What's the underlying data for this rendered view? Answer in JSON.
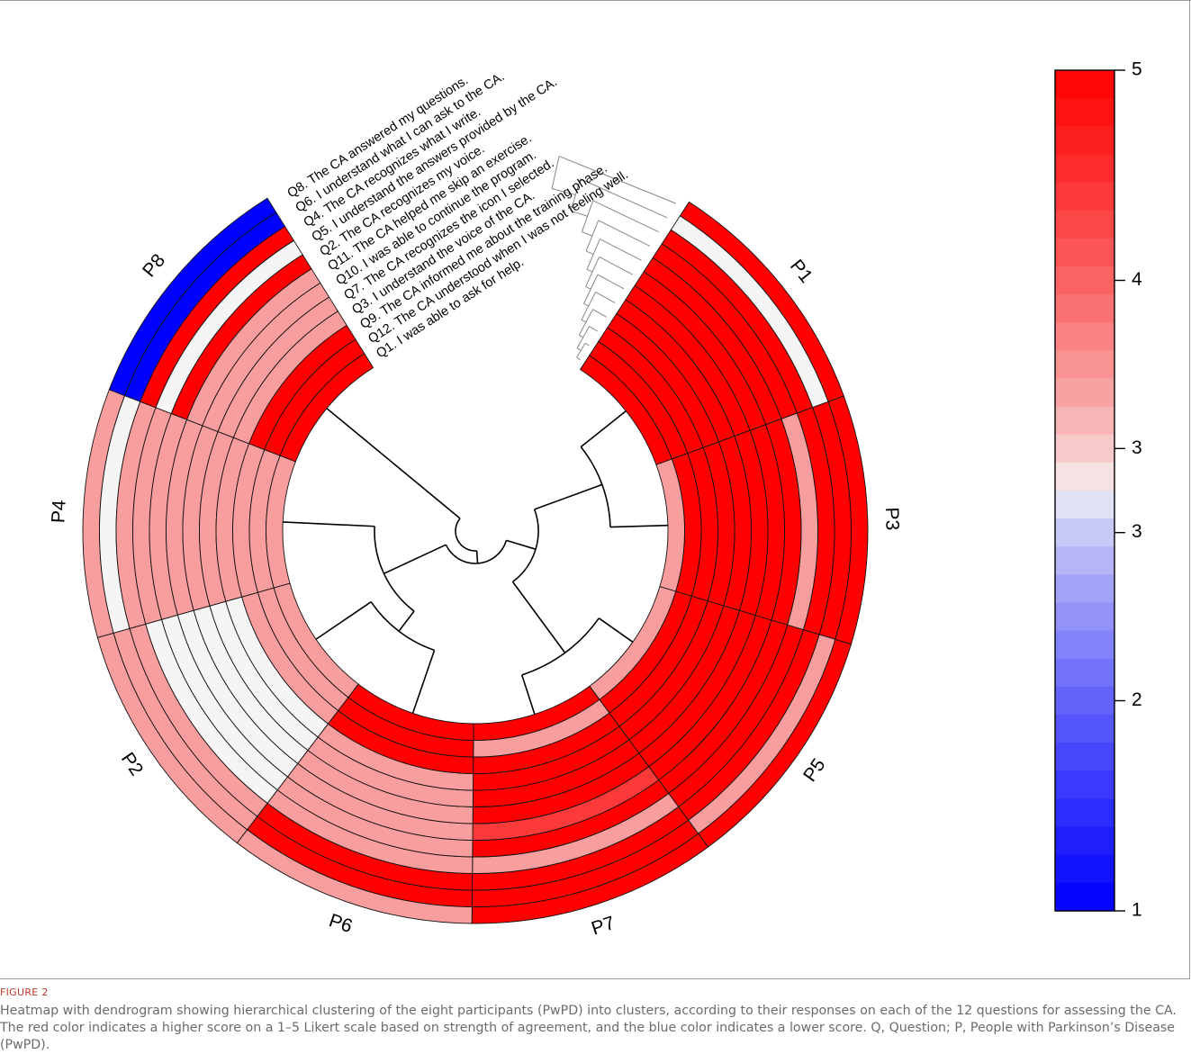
{
  "chart_data": {
    "type": "heatmap",
    "layout": "circular",
    "rows": [
      "Q8. The CA answered my questions.",
      "Q6. I understand what I can ask to the CA.",
      "Q4. The CA recognizes what I write.",
      "Q5. I understand the answers provided by the CA.",
      "Q2. The CA recognizes my voice.",
      "Q11. The CA helped me skip an exercise.",
      "Q10. I was able to continue the program.",
      "Q7. The CA recognizes the icon I selected.",
      "Q3. I understand the voice of the CA.",
      "Q9. The CA informed me about the training phase.",
      "Q12. The CA understood when I was not feeling well.",
      "Q1. I was able to ask for help."
    ],
    "participants": [
      "P1",
      "P3",
      "P5",
      "P7",
      "P6",
      "P2",
      "P4",
      "P8"
    ],
    "values": {
      "P1": [
        5,
        3,
        5,
        5,
        5,
        5,
        5,
        5,
        5,
        5,
        5,
        5
      ],
      "P3": [
        5,
        5,
        5,
        3.5,
        5,
        5,
        5,
        5,
        5,
        5,
        5,
        3.5
      ],
      "P5": [
        5,
        3.5,
        5,
        5,
        5,
        5,
        5,
        5,
        5,
        5,
        5,
        3.5
      ],
      "P7": [
        5,
        5,
        5,
        3.5,
        5,
        4.4,
        5,
        5,
        5,
        5,
        3.5,
        5
      ],
      "P6": [
        3.5,
        5,
        5,
        3.5,
        3.5,
        3.5,
        3.5,
        3.5,
        3.5,
        5,
        5,
        5
      ],
      "P2": [
        3.5,
        3.5,
        3.5,
        3,
        3,
        3,
        3,
        3,
        3,
        3.5,
        3.5,
        3.5
      ],
      "P4": [
        3.5,
        3,
        3.5,
        3.5,
        3.5,
        3.5,
        3.5,
        3.5,
        3.5,
        3.5,
        3.5,
        3.5
      ],
      "P8": [
        1,
        1,
        5,
        3,
        5,
        3.5,
        3.5,
        3.5,
        3.5,
        5,
        5,
        5
      ]
    },
    "colorbar": {
      "ticks": [
        "1",
        "2",
        "3",
        "3",
        "4",
        "5"
      ],
      "tick_values": [
        1,
        2,
        2.8,
        3.2,
        4,
        5
      ],
      "range": [
        1,
        5
      ],
      "low_color": "#0000ff",
      "mid_color": "#f5f5f5",
      "high_color": "#ff0000"
    },
    "dendrogram": "hierarchical clustering of participants (inner) and questions (outer)"
  },
  "caption": {
    "label": "FIGURE 2",
    "text": "Heatmap with dendrogram showing hierarchical clustering of the eight participants (PwPD) into clusters, according to their responses on each of the 12 questions for assessing the CA. The red color indicates a higher score on a 1–5 Likert scale based on strength of agreement, and the blue color indicates a lower score. Q, Question; P, People with Parkinson’s Disease (PwPD)."
  }
}
